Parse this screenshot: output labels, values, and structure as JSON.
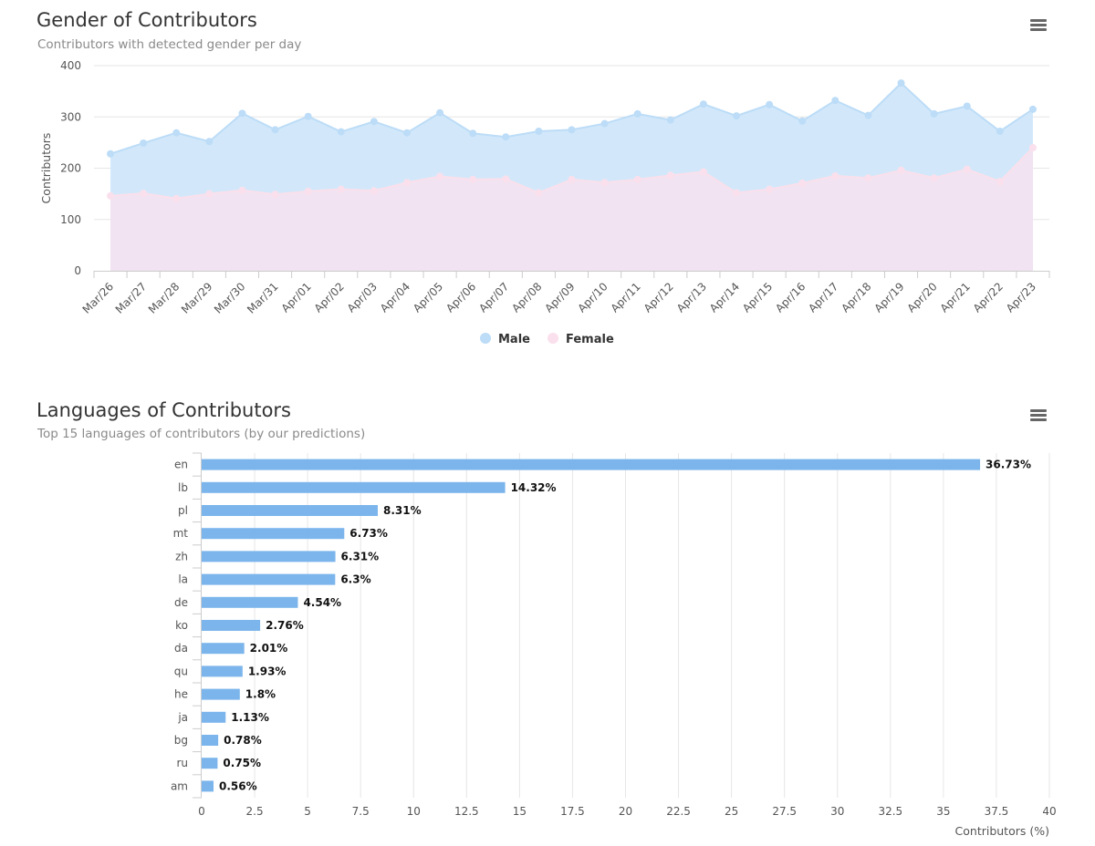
{
  "gender_chart": {
    "title": "Gender of Contributors",
    "subtitle": "Contributors with detected gender per day",
    "menu_icon": "hamburger-menu-icon"
  },
  "languages_chart": {
    "title": "Languages of Contributors",
    "subtitle": "Top 15 languages of contributors (by our predictions)",
    "menu_icon": "hamburger-menu-icon"
  },
  "chart_data": [
    {
      "type": "area",
      "stacked": false,
      "title": "Gender of Contributors",
      "subtitle": "Contributors with detected gender per day",
      "xlabel": "",
      "ylabel": "Contributors",
      "ylim": [
        0,
        400
      ],
      "yticks": [
        0,
        100,
        200,
        300,
        400
      ],
      "grid": true,
      "legend_position": "bottom-center",
      "categories": [
        "Mar/26",
        "Mar/27",
        "Mar/28",
        "Mar/29",
        "Mar/30",
        "Mar/31",
        "Apr/01",
        "Apr/02",
        "Apr/03",
        "Apr/04",
        "Apr/05",
        "Apr/06",
        "Apr/07",
        "Apr/08",
        "Apr/09",
        "Apr/10",
        "Apr/11",
        "Apr/12",
        "Apr/13",
        "Apr/14",
        "Apr/15",
        "Apr/16",
        "Apr/17",
        "Apr/18",
        "Apr/19",
        "Apr/20",
        "Apr/21",
        "Apr/22",
        "Apr/23"
      ],
      "series": [
        {
          "name": "Male",
          "color": "#bcdcf7",
          "fill": "#d2e8fa",
          "values": [
            228,
            249,
            269,
            252,
            307,
            275,
            301,
            271,
            291,
            269,
            308,
            268,
            261,
            272,
            275,
            287,
            306,
            294,
            325,
            302,
            324,
            292,
            332,
            303,
            366,
            306,
            321,
            272,
            315
          ]
        },
        {
          "name": "Female",
          "color": "#fae0ec",
          "fill": "#f1e3f1",
          "values": [
            146,
            151,
            141,
            150,
            157,
            149,
            155,
            159,
            156,
            172,
            184,
            178,
            179,
            152,
            178,
            172,
            178,
            186,
            193,
            152,
            159,
            171,
            185,
            181,
            196,
            181,
            198,
            174,
            240
          ]
        }
      ]
    },
    {
      "type": "bar",
      "orientation": "horizontal",
      "title": "Languages of Contributors",
      "subtitle": "Top 15 languages of contributors (by our predictions)",
      "xlabel": "Contributors (%)",
      "ylabel": "",
      "xlim": [
        0,
        40
      ],
      "xticks": [
        "0",
        "2.5",
        "5",
        "7.5",
        "10",
        "12.5",
        "15",
        "17.5",
        "20",
        "22.5",
        "25",
        "27.5",
        "30",
        "32.5",
        "35",
        "37.5",
        "40"
      ],
      "grid": true,
      "bar_color": "#7cb5ec",
      "categories": [
        "en",
        "lb",
        "pl",
        "mt",
        "zh",
        "la",
        "de",
        "ko",
        "da",
        "qu",
        "he",
        "ja",
        "bg",
        "ru",
        "am"
      ],
      "values": [
        36.73,
        14.32,
        8.31,
        6.73,
        6.31,
        6.3,
        4.54,
        2.76,
        2.01,
        1.93,
        1.8,
        1.13,
        0.78,
        0.75,
        0.56
      ],
      "data_labels": [
        "36.73%",
        "14.32%",
        "8.31%",
        "6.73%",
        "6.31%",
        "6.3%",
        "4.54%",
        "2.76%",
        "2.01%",
        "1.93%",
        "1.8%",
        "1.13%",
        "0.78%",
        "0.75%",
        "0.56%"
      ]
    }
  ]
}
